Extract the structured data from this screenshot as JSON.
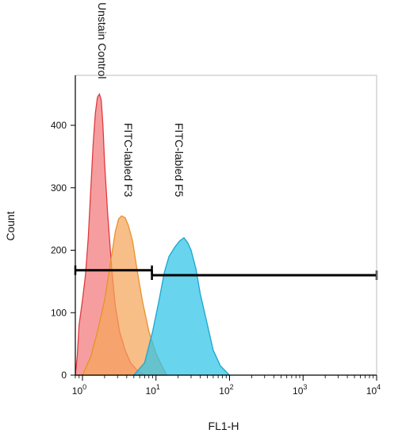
{
  "chart_data": {
    "type": "area",
    "xlabel": "FL1-H",
    "ylabel": "Count",
    "x_scale": "log",
    "xlim": [
      0.8,
      10000
    ],
    "ylim": [
      0,
      480
    ],
    "x_ticks": [
      {
        "value": 1,
        "base": "10",
        "exp": "0"
      },
      {
        "value": 10,
        "base": "10",
        "exp": "1"
      },
      {
        "value": 100,
        "base": "10",
        "exp": "2"
      },
      {
        "value": 1000,
        "base": "10",
        "exp": "3"
      },
      {
        "value": 10000,
        "base": "10",
        "exp": "4"
      }
    ],
    "y_ticks": [
      0,
      100,
      200,
      300,
      400
    ],
    "series": [
      {
        "label": "Unstain Control",
        "fill": "#f2787a",
        "stroke": "#e03a3e",
        "points": [
          [
            0.8,
            0
          ],
          [
            0.85,
            30
          ],
          [
            0.9,
            80
          ],
          [
            1.0,
            120
          ],
          [
            1.1,
            160
          ],
          [
            1.2,
            220
          ],
          [
            1.3,
            300
          ],
          [
            1.4,
            370
          ],
          [
            1.5,
            420
          ],
          [
            1.6,
            445
          ],
          [
            1.7,
            450
          ],
          [
            1.8,
            440
          ],
          [
            1.9,
            400
          ],
          [
            2.0,
            340
          ],
          [
            2.2,
            260
          ],
          [
            2.5,
            170
          ],
          [
            2.8,
            110
          ],
          [
            3.2,
            70
          ],
          [
            3.8,
            40
          ],
          [
            4.5,
            20
          ],
          [
            5.5,
            8
          ],
          [
            7,
            0
          ]
        ]
      },
      {
        "label": "FITC-labled F3",
        "fill": "#f5a55a",
        "stroke": "#e8922a",
        "points": [
          [
            1.0,
            0
          ],
          [
            1.3,
            30
          ],
          [
            1.6,
            70
          ],
          [
            2.0,
            120
          ],
          [
            2.4,
            180
          ],
          [
            2.8,
            230
          ],
          [
            3.1,
            250
          ],
          [
            3.4,
            255
          ],
          [
            3.8,
            252
          ],
          [
            4.2,
            240
          ],
          [
            4.8,
            215
          ],
          [
            5.5,
            170
          ],
          [
            6.5,
            120
          ],
          [
            8,
            70
          ],
          [
            10,
            35
          ],
          [
            12,
            15
          ],
          [
            14,
            0
          ]
        ]
      },
      {
        "label": "FITC-labled F5",
        "fill": "#2ec4e8",
        "stroke": "#1aa7cf",
        "points": [
          [
            5,
            0
          ],
          [
            7,
            20
          ],
          [
            9,
            70
          ],
          [
            11,
            120
          ],
          [
            13,
            165
          ],
          [
            15,
            190
          ],
          [
            18,
            205
          ],
          [
            21,
            215
          ],
          [
            24,
            220
          ],
          [
            27,
            212
          ],
          [
            30,
            200
          ],
          [
            35,
            170
          ],
          [
            40,
            130
          ],
          [
            48,
            90
          ],
          [
            60,
            40
          ],
          [
            75,
            15
          ],
          [
            100,
            0
          ]
        ]
      }
    ],
    "gates": [
      {
        "x_start": 0.8,
        "x_end": 8.8,
        "y": 168
      },
      {
        "x_start": 8.8,
        "x_end": 10000,
        "y": 160
      }
    ]
  }
}
